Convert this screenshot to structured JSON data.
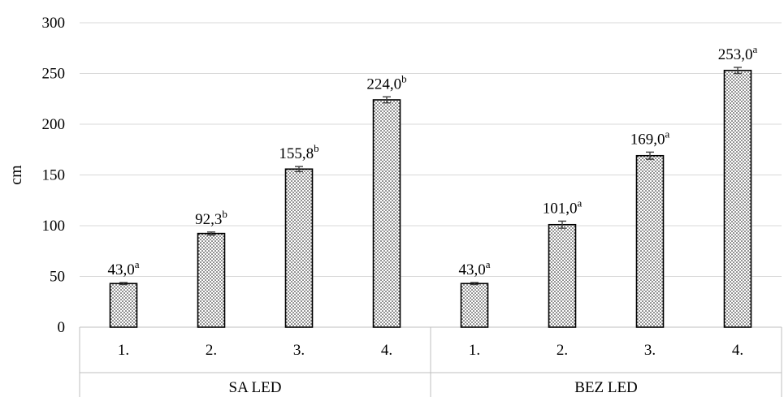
{
  "chart_data": {
    "type": "bar",
    "title": "",
    "ylabel": "cm",
    "xlabel": "",
    "ylim": [
      0,
      300
    ],
    "yticks": [
      0,
      50,
      100,
      150,
      200,
      250,
      300
    ],
    "grid": true,
    "legend": "none",
    "groups": [
      {
        "name": "SA LED",
        "categories": [
          "1.",
          "2.",
          "3.",
          "4."
        ],
        "values": [
          43.0,
          92.3,
          155.8,
          224.0
        ],
        "errors": [
          1,
          1.5,
          2.5,
          3
        ],
        "labels": [
          "43,0",
          "92,3",
          "155,8",
          "224,0"
        ],
        "superscripts": [
          "a",
          "b",
          "b",
          "b"
        ]
      },
      {
        "name": "BEZ LED",
        "categories": [
          "1.",
          "2.",
          "3.",
          "4."
        ],
        "values": [
          43.0,
          101.0,
          169.0,
          253.0
        ],
        "errors": [
          1,
          3.5,
          3.5,
          3
        ],
        "labels": [
          "43,0",
          "101,0",
          "169,0",
          "253,0"
        ],
        "superscripts": [
          "a",
          "a",
          "a",
          "a"
        ]
      }
    ]
  }
}
